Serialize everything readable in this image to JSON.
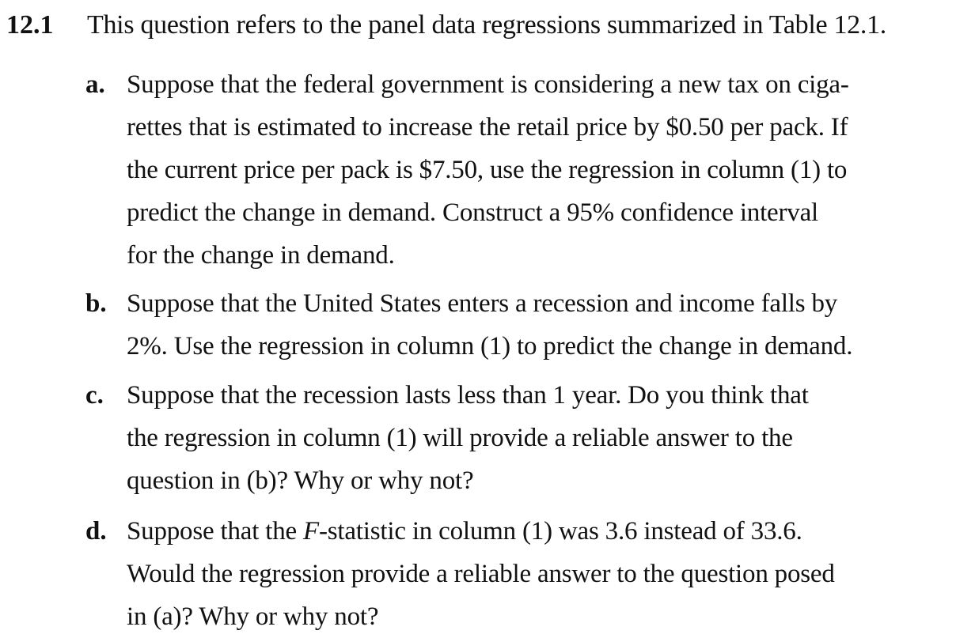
{
  "question": {
    "number": "12.1",
    "stem": "This question refers to the panel data regressions summarized in Table 12.1."
  },
  "parts": {
    "a": {
      "label": "a.",
      "lines": [
        "Suppose that the federal government is considering a new tax on ciga-",
        "rettes that is estimated to increase the retail price by $0.50 per pack. If",
        "the current price per pack is $7.50, use the regression in column (1) to",
        "predict the change in demand. Construct a 95% confidence interval",
        "for the change in demand."
      ]
    },
    "b": {
      "label": "b.",
      "lines": [
        "Suppose that the United States enters a recession and income falls by",
        "2%. Use the regression in column (1) to predict the change in demand."
      ]
    },
    "c": {
      "label": "c.",
      "lines": [
        "Suppose that the recession lasts less than 1 year. Do you think that",
        "the regression in column (1) will provide a reliable answer to the",
        "question in (b)? Why or why not?"
      ]
    },
    "d": {
      "label": "d.",
      "line1_before": "Suppose that the ",
      "line1_italic": "F",
      "line1_after": "-statistic in column (1) was 3.6 instead of 33.6.",
      "lines_rest": [
        "Would the regression provide a reliable answer to the question posed",
        "in (a)? Why or why not?"
      ]
    }
  }
}
